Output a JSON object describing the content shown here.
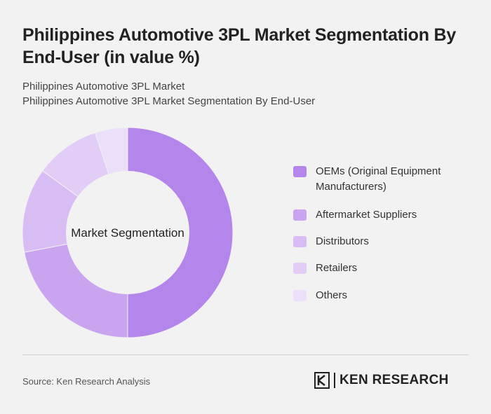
{
  "title": "Philippines Automotive 3PL Market Segmentation By End-User (in value %)",
  "subtitle_line1": "Philippines Automotive 3PL Market",
  "subtitle_line2": "Philippines Automotive 3PL Market Segmentation By End-User",
  "center_label": "Market Segmentation",
  "source": "Source: Ken Research Analysis",
  "logo_text": "KEN RESEARCH",
  "chart_data": {
    "type": "pie",
    "donut": true,
    "categories": [
      "OEMs (Original Equipment Manufacturers)",
      "Aftermarket Suppliers",
      "Distributors",
      "Retailers",
      "Others"
    ],
    "values": [
      50,
      22,
      13,
      10,
      5
    ],
    "colors": [
      "#b485ea",
      "#c9a4ef",
      "#d7bdf3",
      "#e1cdf6",
      "#ebdffa"
    ],
    "legend_position": "right"
  }
}
